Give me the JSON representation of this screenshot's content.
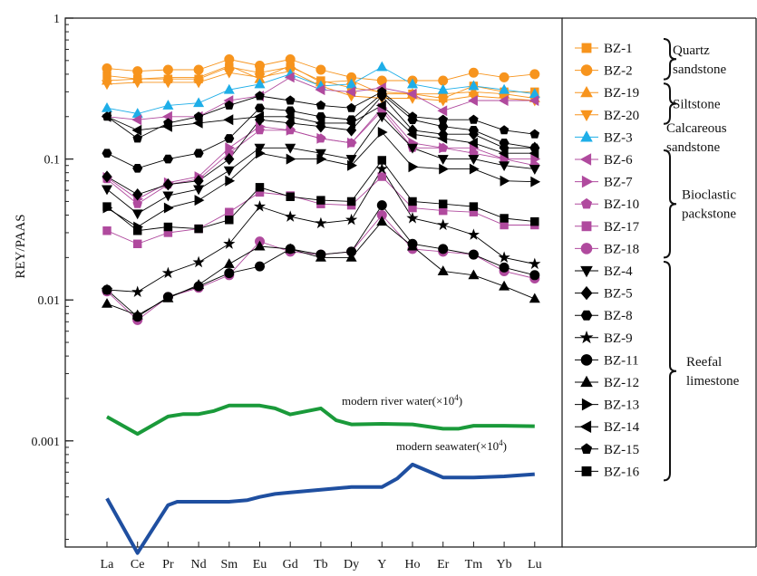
{
  "chart_data": {
    "type": "line",
    "xlabel": "",
    "ylabel": "REY/PAAS",
    "yscale": "log",
    "ylim": [
      0.00015,
      1
    ],
    "yticks": [
      {
        "value": 1,
        "label": "1"
      },
      {
        "value": 0.1,
        "label": "0.1"
      },
      {
        "value": 0.01,
        "label": "0.01"
      },
      {
        "value": 0.001,
        "label": "0.001"
      }
    ],
    "categories": [
      "La",
      "Ce",
      "Pr",
      "Nd",
      "Sm",
      "Eu",
      "Gd",
      "Tb",
      "Dy",
      "Y",
      "Ho",
      "Er",
      "Tm",
      "Yb",
      "Lu"
    ],
    "series": [
      {
        "name": "BZ-1",
        "marker": "square",
        "color": "#f7941d",
        "values": [
          0.39,
          0.37,
          0.37,
          0.37,
          0.45,
          0.41,
          0.45,
          0.36,
          0.32,
          0.3,
          0.29,
          0.27,
          0.33,
          0.3,
          0.3
        ]
      },
      {
        "name": "BZ-2",
        "marker": "circle",
        "color": "#f7941d",
        "values": [
          0.44,
          0.42,
          0.43,
          0.43,
          0.51,
          0.46,
          0.51,
          0.43,
          0.38,
          0.36,
          0.36,
          0.36,
          0.41,
          0.38,
          0.4
        ]
      },
      {
        "name": "BZ-19",
        "marker": "triangle-up",
        "color": "#f7941d",
        "values": [
          0.36,
          0.37,
          0.38,
          0.38,
          0.46,
          0.37,
          0.46,
          0.35,
          0.36,
          0.29,
          0.29,
          0.29,
          0.3,
          0.29,
          0.27
        ]
      },
      {
        "name": "BZ-20",
        "marker": "triangle-down",
        "color": "#f7941d",
        "values": [
          0.34,
          0.35,
          0.35,
          0.35,
          0.41,
          0.38,
          0.42,
          0.33,
          0.28,
          0.27,
          0.27,
          0.26,
          0.28,
          0.27,
          0.26
        ]
      },
      {
        "name": "BZ-3",
        "marker": "triangle-up",
        "color": "#1eaee8",
        "values": [
          0.23,
          0.21,
          0.24,
          0.25,
          0.31,
          0.34,
          0.4,
          0.33,
          0.34,
          0.45,
          0.34,
          0.31,
          0.33,
          0.31,
          0.29
        ]
      },
      {
        "name": "BZ-6",
        "marker": "triangle-left",
        "color": "#b04a9e",
        "values": [
          0.2,
          0.19,
          0.2,
          0.2,
          0.26,
          0.28,
          0.38,
          0.31,
          0.3,
          0.32,
          0.29,
          0.22,
          0.26,
          0.26,
          0.26
        ]
      },
      {
        "name": "BZ-7",
        "marker": "triangle-right",
        "color": "#b04a9e",
        "values": [
          0.074,
          0.052,
          0.068,
          0.075,
          0.12,
          0.17,
          0.16,
          0.14,
          0.13,
          0.23,
          0.13,
          0.12,
          0.12,
          0.1,
          0.1
        ]
      },
      {
        "name": "BZ-10",
        "marker": "pentagon",
        "color": "#b04a9e",
        "values": [
          0.072,
          0.048,
          0.066,
          0.072,
          0.11,
          0.16,
          0.16,
          0.14,
          0.13,
          0.22,
          0.12,
          0.12,
          0.11,
          0.1,
          0.09
        ]
      },
      {
        "name": "BZ-17",
        "marker": "square",
        "color": "#b04a9e",
        "values": [
          0.031,
          0.025,
          0.03,
          0.032,
          0.042,
          0.058,
          0.055,
          0.048,
          0.047,
          0.075,
          0.045,
          0.043,
          0.042,
          0.034,
          0.034
        ]
      },
      {
        "name": "BZ-18",
        "marker": "circle",
        "color": "#b04a9e",
        "values": [
          0.0115,
          0.0072,
          0.0105,
          0.0122,
          0.015,
          0.026,
          0.022,
          0.021,
          0.022,
          0.04,
          0.023,
          0.022,
          0.021,
          0.016,
          0.0142
        ]
      },
      {
        "name": "BZ-4",
        "marker": "triangle-down",
        "color": "#000000",
        "values": [
          0.061,
          0.041,
          0.055,
          0.061,
          0.083,
          0.12,
          0.12,
          0.11,
          0.1,
          0.2,
          0.12,
          0.1,
          0.1,
          0.09,
          0.085
        ]
      },
      {
        "name": "BZ-5",
        "marker": "diamond",
        "color": "#000000",
        "values": [
          0.075,
          0.056,
          0.066,
          0.07,
          0.1,
          0.19,
          0.18,
          0.17,
          0.16,
          0.28,
          0.16,
          0.15,
          0.15,
          0.12,
          0.12
        ]
      },
      {
        "name": "BZ-8",
        "marker": "hexagon",
        "color": "#000000",
        "values": [
          0.11,
          0.086,
          0.1,
          0.11,
          0.14,
          0.23,
          0.22,
          0.2,
          0.19,
          0.29,
          0.19,
          0.17,
          0.16,
          0.13,
          0.12
        ]
      },
      {
        "name": "BZ-9",
        "marker": "star",
        "color": "#000000",
        "values": [
          0.0118,
          0.0114,
          0.0155,
          0.0185,
          0.025,
          0.046,
          0.039,
          0.035,
          0.037,
          0.085,
          0.038,
          0.034,
          0.029,
          0.02,
          0.018
        ]
      },
      {
        "name": "BZ-11",
        "marker": "circle",
        "color": "#000000",
        "values": [
          0.0118,
          0.0076,
          0.0105,
          0.0125,
          0.0155,
          0.0173,
          0.023,
          0.021,
          0.022,
          0.047,
          0.025,
          0.023,
          0.021,
          0.017,
          0.015
        ]
      },
      {
        "name": "BZ-12",
        "marker": "triangle-up",
        "color": "#000000",
        "values": [
          0.0094,
          0.0078,
          0.0103,
          0.0128,
          0.018,
          0.024,
          0.023,
          0.02,
          0.02,
          0.036,
          0.024,
          0.016,
          0.015,
          0.0125,
          0.0102
        ]
      },
      {
        "name": "BZ-13",
        "marker": "triangle-right",
        "color": "#000000",
        "values": [
          0.045,
          0.033,
          0.045,
          0.051,
          0.07,
          0.11,
          0.1,
          0.1,
          0.09,
          0.155,
          0.088,
          0.085,
          0.085,
          0.07,
          0.069
        ]
      },
      {
        "name": "BZ-14",
        "marker": "triangle-left",
        "color": "#000000",
        "values": [
          0.2,
          0.16,
          0.17,
          0.18,
          0.19,
          0.2,
          0.2,
          0.18,
          0.18,
          0.24,
          0.15,
          0.14,
          0.13,
          0.11,
          0.11
        ]
      },
      {
        "name": "BZ-15",
        "marker": "pentagon",
        "color": "#000000",
        "values": [
          0.2,
          0.14,
          0.18,
          0.2,
          0.24,
          0.28,
          0.26,
          0.24,
          0.23,
          0.3,
          0.2,
          0.19,
          0.19,
          0.16,
          0.15
        ]
      },
      {
        "name": "BZ-16",
        "marker": "square",
        "color": "#000000",
        "values": [
          0.046,
          0.031,
          0.033,
          0.032,
          0.037,
          0.063,
          0.054,
          0.051,
          0.05,
          0.098,
          0.05,
          0.048,
          0.046,
          0.038,
          0.036
        ]
      }
    ],
    "reference_lines": [
      {
        "name": "modern river water(×10⁴)",
        "label": "modern river water(×10",
        "label_exp": "4",
        "label_close": ")",
        "color": "#1a9a3a",
        "points": [
          [
            0,
            0.00148
          ],
          [
            1,
            0.00112
          ],
          [
            2,
            0.00149
          ],
          [
            2.5,
            0.00155
          ],
          [
            3,
            0.00155
          ],
          [
            3.5,
            0.00163
          ],
          [
            4,
            0.00178
          ],
          [
            5,
            0.00178
          ],
          [
            5.5,
            0.0017
          ],
          [
            6,
            0.00154
          ],
          [
            7,
            0.0017
          ],
          [
            7.5,
            0.0014
          ],
          [
            8,
            0.00131
          ],
          [
            9,
            0.00132
          ],
          [
            10,
            0.00131
          ],
          [
            11,
            0.00122
          ],
          [
            11.5,
            0.00122
          ],
          [
            12,
            0.00128
          ],
          [
            13,
            0.00128
          ],
          [
            14,
            0.00127
          ]
        ]
      },
      {
        "name": "modern seawater(×10⁴)",
        "label": "modern seawater(×10",
        "label_exp": "4",
        "label_close": ")",
        "color": "#1f4fa0",
        "points": [
          [
            0,
            0.00039
          ],
          [
            1,
            0.00016
          ],
          [
            2,
            0.00035
          ],
          [
            2.3,
            0.00037
          ],
          [
            4,
            0.00037
          ],
          [
            4.6,
            0.00038
          ],
          [
            5,
            0.0004
          ],
          [
            5.5,
            0.00042
          ],
          [
            6,
            0.00043
          ],
          [
            7,
            0.00045
          ],
          [
            8,
            0.00047
          ],
          [
            9,
            0.00047
          ],
          [
            9.5,
            0.00054
          ],
          [
            10,
            0.00068
          ],
          [
            11,
            0.00055
          ],
          [
            12,
            0.00055
          ],
          [
            13,
            0.00056
          ],
          [
            14,
            0.00058
          ]
        ]
      }
    ],
    "legend": {
      "placement": "right",
      "groups": [
        {
          "label": [
            "Quartz",
            "sandstone"
          ],
          "brace": true
        },
        {
          "label": [
            "Siltstone"
          ],
          "brace": true
        },
        {
          "label": [
            "Calcareous",
            "sandstone"
          ],
          "brace": false
        },
        {
          "label": [
            "Bioclastic",
            "packstone"
          ],
          "brace": true
        },
        {
          "label": [
            "Reefal",
            "limestone"
          ],
          "brace": true
        }
      ]
    }
  }
}
